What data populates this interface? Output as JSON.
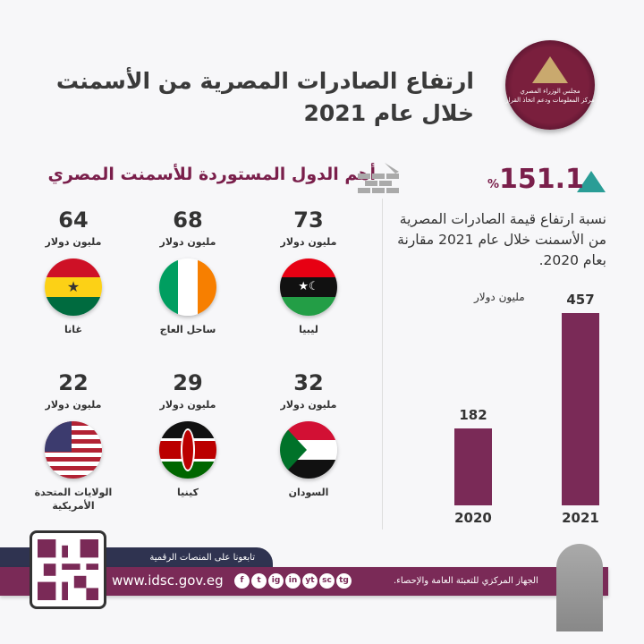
{
  "header": {
    "title_line1": "ارتفاع الصادرات المصرية من الأسمنت",
    "title_line2": "خلال عام 2021",
    "logo_line1": "مجلس الوزراء المصري",
    "logo_line2": "مركز المعلومات ودعم اتخاذ القرار"
  },
  "importers": {
    "title": "أهم الدول المستوردة للأسمنت المصري",
    "unit": "مليون دولار",
    "countries": [
      {
        "name": "ليبيا",
        "value": "73"
      },
      {
        "name": "ساحل العاج",
        "value": "68"
      },
      {
        "name": "غانا",
        "value": "64"
      },
      {
        "name": "السودان",
        "value": "32"
      },
      {
        "name": "كينيا",
        "value": "29"
      },
      {
        "name": "الولايات المتحدة الأمريكية",
        "value": "22"
      }
    ]
  },
  "growth": {
    "value": "151.1",
    "percent_sign": "%",
    "description": "نسبة ارتفاع قيمة الصادرات المصرية من الأسمنت خلال عام 2021 مقارنة بعام 2020."
  },
  "chart_data": {
    "type": "bar",
    "categories": [
      "2020",
      "2021"
    ],
    "values": [
      182,
      457
    ],
    "ylabel": "مليون دولار",
    "color": "#7a2a57"
  },
  "footer": {
    "follow": "تابعونا على المنصات الرقمية",
    "url": "www.idsc.gov.eg",
    "org": "الجهاز المركزي للتعبئة العامة والإحصاء.",
    "social": [
      "f",
      "t",
      "ig",
      "in",
      "yt",
      "sc",
      "tg"
    ]
  }
}
